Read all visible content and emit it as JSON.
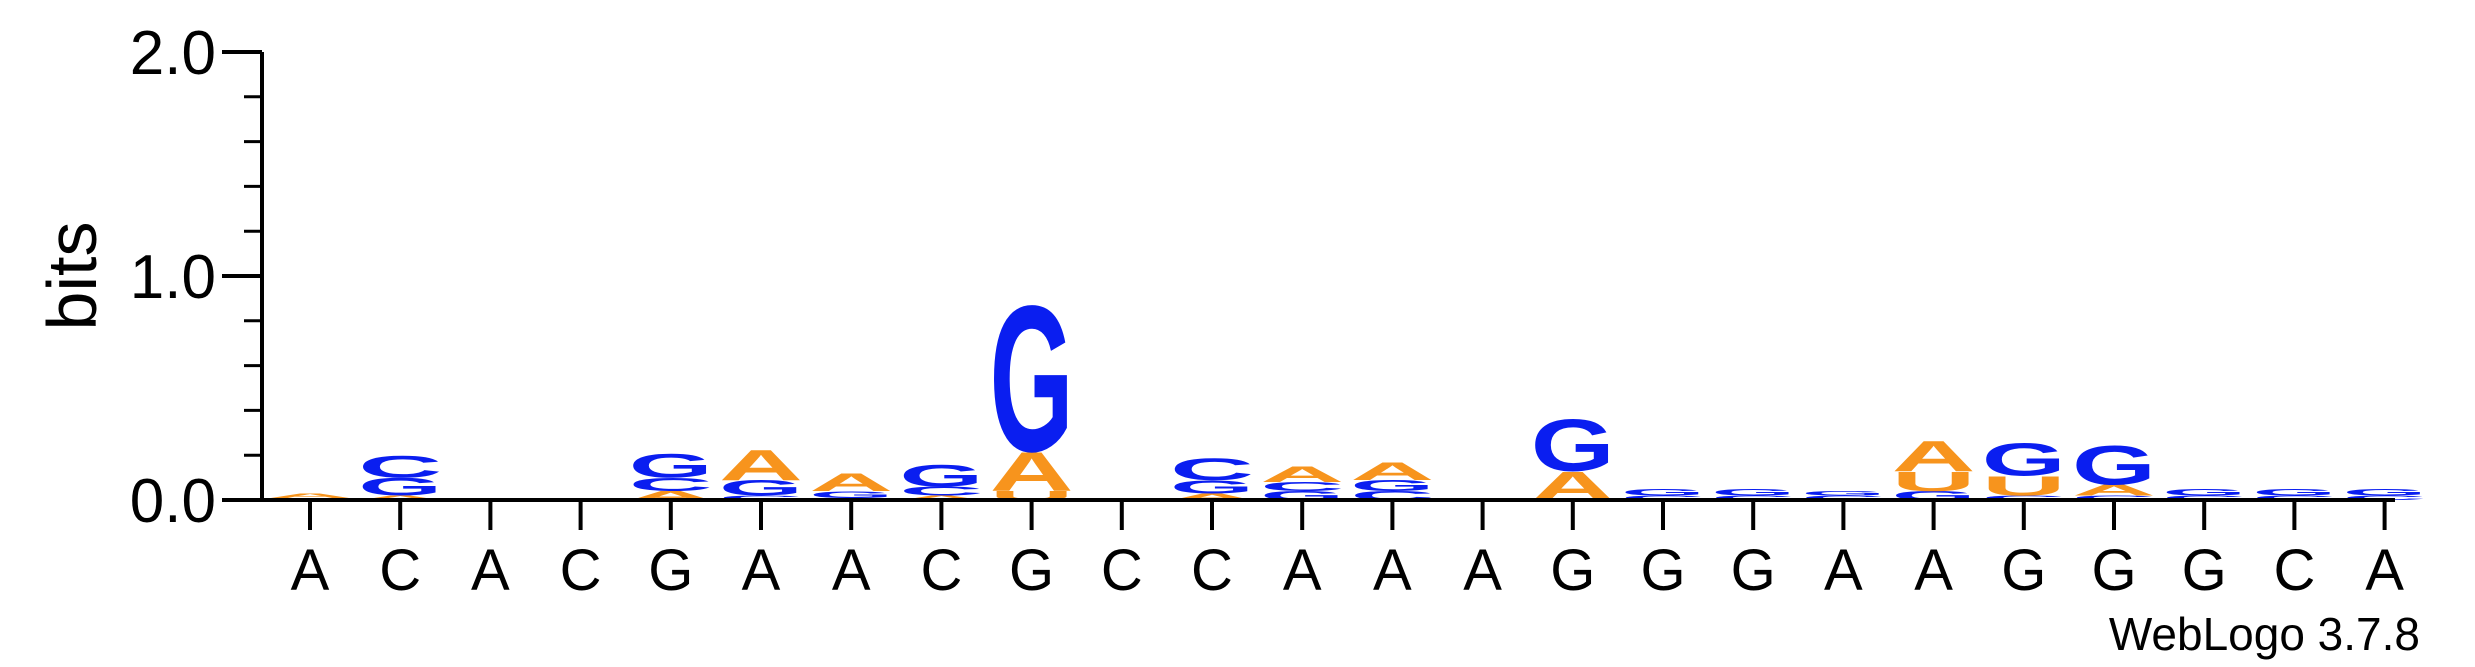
{
  "chart_data": {
    "type": "sequence-logo",
    "ylabel": "bits",
    "ylim": [
      0,
      2.0
    ],
    "yticks": [
      {
        "value": 0.0,
        "label": "0.0"
      },
      {
        "value": 1.0,
        "label": "1.0"
      },
      {
        "value": 2.0,
        "label": "2.0"
      }
    ],
    "credit": "WebLogo 3.7.8",
    "colors": {
      "A": "#f7941d",
      "U": "#f7941d",
      "C": "#0a1ef0",
      "G": "#0a1ef0"
    },
    "positions": [
      {
        "label": "A",
        "stack": [
          {
            "letter": "C",
            "bits": 0.01
          },
          {
            "letter": "A",
            "bits": 0.02
          }
        ]
      },
      {
        "label": "C",
        "stack": [
          {
            "letter": "A",
            "bits": 0.02
          },
          {
            "letter": "G",
            "bits": 0.08
          },
          {
            "letter": "C",
            "bits": 0.1
          }
        ]
      },
      {
        "label": "A",
        "stack": [
          {
            "letter": "A",
            "bits": 0.01
          }
        ]
      },
      {
        "label": "C",
        "stack": []
      },
      {
        "label": "G",
        "stack": [
          {
            "letter": "A",
            "bits": 0.04
          },
          {
            "letter": "C",
            "bits": 0.06
          },
          {
            "letter": "G",
            "bits": 0.11
          }
        ]
      },
      {
        "label": "A",
        "stack": [
          {
            "letter": "C",
            "bits": 0.02
          },
          {
            "letter": "G",
            "bits": 0.07
          },
          {
            "letter": "A",
            "bits": 0.14
          }
        ]
      },
      {
        "label": "A",
        "stack": [
          {
            "letter": "C",
            "bits": 0.01
          },
          {
            "letter": "G",
            "bits": 0.03
          },
          {
            "letter": "A",
            "bits": 0.08
          }
        ]
      },
      {
        "label": "C",
        "stack": [
          {
            "letter": "A",
            "bits": 0.02
          },
          {
            "letter": "C",
            "bits": 0.04
          },
          {
            "letter": "G",
            "bits": 0.1
          }
        ]
      },
      {
        "label": "G",
        "stack": [
          {
            "letter": "U",
            "bits": 0.04
          },
          {
            "letter": "A",
            "bits": 0.18
          },
          {
            "letter": "G",
            "bits": 0.67
          }
        ]
      },
      {
        "label": "C",
        "stack": []
      },
      {
        "label": "C",
        "stack": [
          {
            "letter": "A",
            "bits": 0.03
          },
          {
            "letter": "G",
            "bits": 0.06
          },
          {
            "letter": "C",
            "bits": 0.1
          }
        ]
      },
      {
        "label": "A",
        "stack": [
          {
            "letter": "G",
            "bits": 0.04
          },
          {
            "letter": "C",
            "bits": 0.04
          },
          {
            "letter": "A",
            "bits": 0.07
          }
        ]
      },
      {
        "label": "A",
        "stack": [
          {
            "letter": "C",
            "bits": 0.04
          },
          {
            "letter": "G",
            "bits": 0.05
          },
          {
            "letter": "A",
            "bits": 0.08
          }
        ]
      },
      {
        "label": "A",
        "stack": []
      },
      {
        "label": "G",
        "stack": [
          {
            "letter": "A",
            "bits": 0.13
          },
          {
            "letter": "G",
            "bits": 0.24
          }
        ]
      },
      {
        "label": "G",
        "stack": [
          {
            "letter": "C",
            "bits": 0.02
          },
          {
            "letter": "G",
            "bits": 0.03
          }
        ]
      },
      {
        "label": "G",
        "stack": [
          {
            "letter": "C",
            "bits": 0.02
          },
          {
            "letter": "G",
            "bits": 0.03
          }
        ]
      },
      {
        "label": "A",
        "stack": [
          {
            "letter": "C",
            "bits": 0.02
          },
          {
            "letter": "G",
            "bits": 0.02
          }
        ]
      },
      {
        "label": "A",
        "stack": [
          {
            "letter": "G",
            "bits": 0.04
          },
          {
            "letter": "U",
            "bits": 0.09
          },
          {
            "letter": "A",
            "bits": 0.14
          }
        ]
      },
      {
        "label": "G",
        "stack": [
          {
            "letter": "C",
            "bits": 0.02
          },
          {
            "letter": "U",
            "bits": 0.09
          },
          {
            "letter": "G",
            "bits": 0.15
          }
        ]
      },
      {
        "label": "G",
        "stack": [
          {
            "letter": "C",
            "bits": 0.02
          },
          {
            "letter": "A",
            "bits": 0.05
          },
          {
            "letter": "G",
            "bits": 0.18
          }
        ]
      },
      {
        "label": "G",
        "stack": [
          {
            "letter": "C",
            "bits": 0.02
          },
          {
            "letter": "G",
            "bits": 0.03
          }
        ]
      },
      {
        "label": "C",
        "stack": [
          {
            "letter": "C",
            "bits": 0.02
          },
          {
            "letter": "G",
            "bits": 0.03
          }
        ]
      },
      {
        "label": "A",
        "stack": [
          {
            "letter": "C",
            "bits": 0.02
          },
          {
            "letter": "G",
            "bits": 0.03
          }
        ]
      }
    ]
  }
}
